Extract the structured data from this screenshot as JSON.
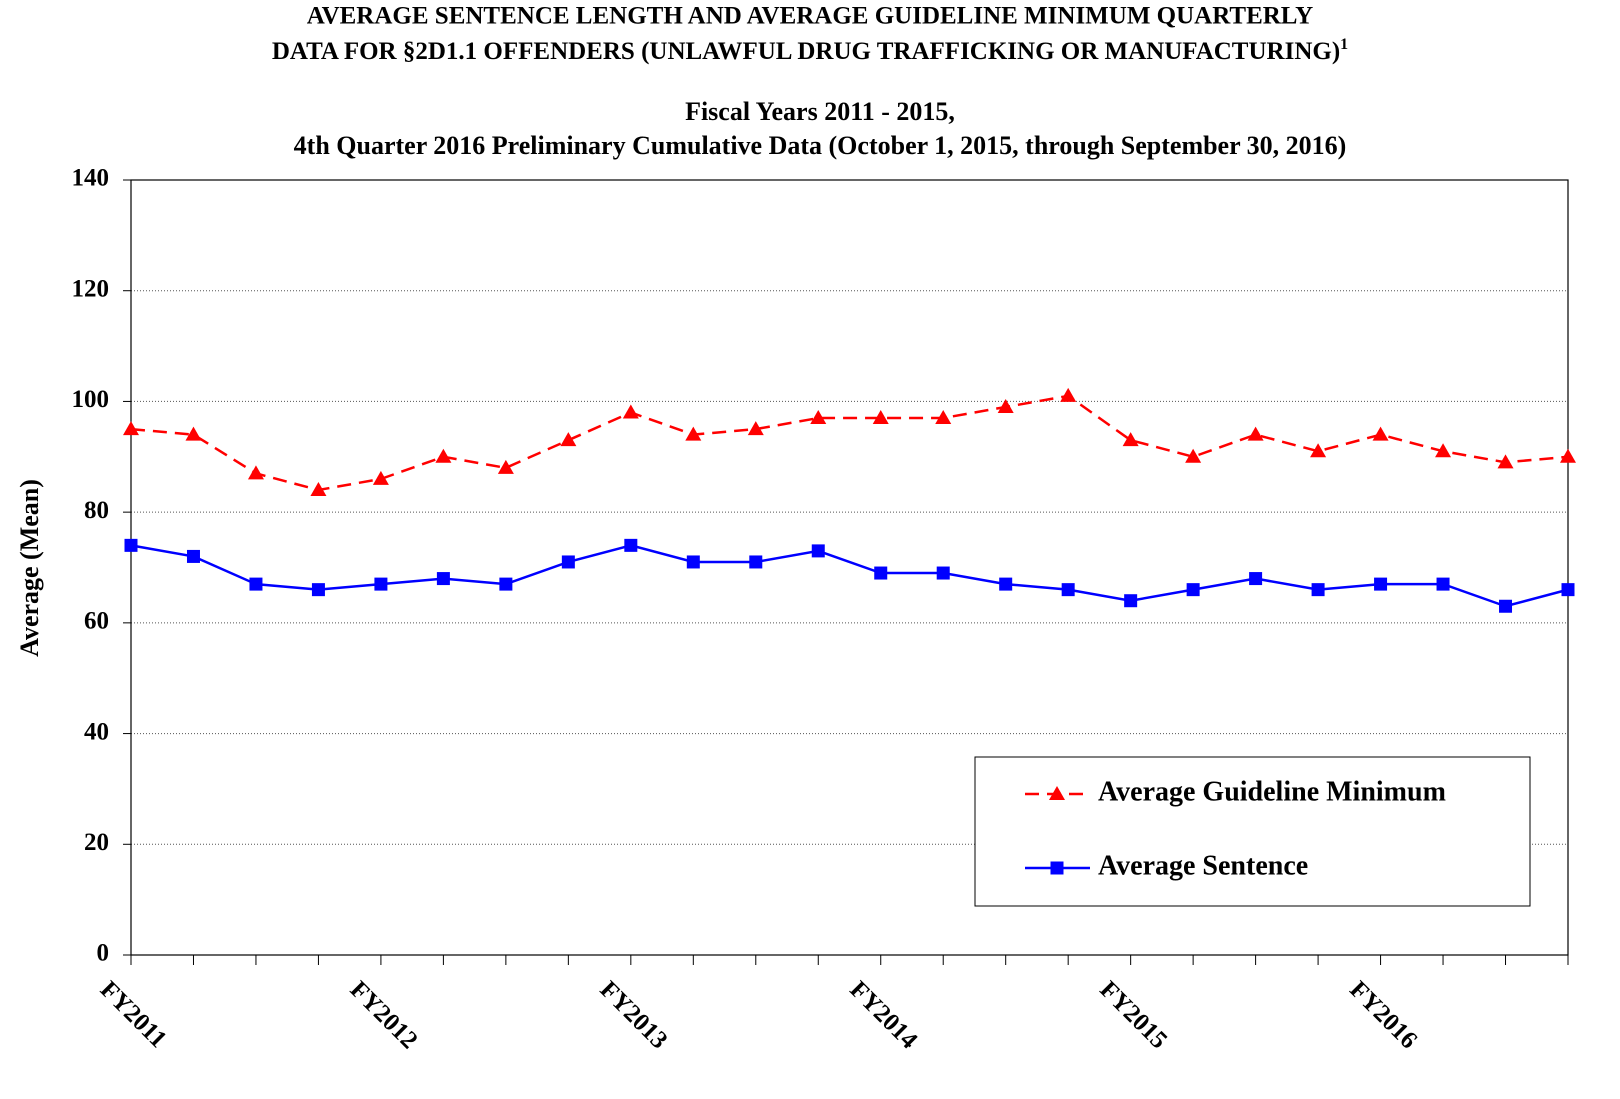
{
  "chart_data": {
    "type": "line",
    "title": [
      "AVERAGE SENTENCE LENGTH AND AVERAGE GUIDELINE MINIMUM QUARTERLY",
      "DATA FOR §2D1.1 OFFENDERS (UNLAWFUL DRUG TRAFFICKING OR MANUFACTURING)"
    ],
    "title_footnote_marker": "1",
    "subtitle": [
      "Fiscal Years 2011 - 2015,",
      "4th Quarter 2016 Preliminary Cumulative Data (October 1, 2015, through September 30, 2016)"
    ],
    "y_label": "Average (Mean)",
    "categories": [
      "FY2011",
      null,
      null,
      null,
      "FY2012",
      null,
      null,
      null,
      "FY2013",
      null,
      null,
      null,
      "FY2014",
      null,
      null,
      null,
      "FY2015",
      null,
      null,
      null,
      "FY2016",
      null,
      null,
      null
    ],
    "series": [
      {
        "name": "Average Guideline Minimum",
        "color": "#ff0000",
        "dashed": true,
        "marker": "triangle",
        "values": [
          95,
          94,
          87,
          84,
          86,
          90,
          88,
          93,
          98,
          94,
          95,
          97,
          97,
          97,
          99,
          101,
          93,
          90,
          94,
          91,
          94,
          91,
          89,
          90
        ]
      },
      {
        "name": "Average Sentence",
        "color": "#0000ff",
        "dashed": false,
        "marker": "square",
        "values": [
          74,
          72,
          67,
          66,
          67,
          68,
          67,
          71,
          74,
          71,
          71,
          73,
          69,
          69,
          67,
          66,
          64,
          66,
          68,
          66,
          67,
          67,
          63,
          66
        ]
      }
    ],
    "ylim": [
      0,
      140
    ],
    "yticks": [
      0,
      20,
      40,
      60,
      80,
      100,
      120,
      140
    ],
    "grid": true,
    "legend": "lower right"
  }
}
